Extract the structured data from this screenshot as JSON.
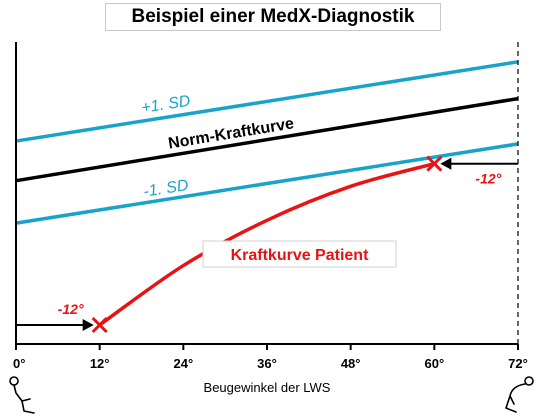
{
  "chart_data": {
    "type": "line",
    "title": "Beispiel einer MedX-Diagnostik",
    "xlabel": "Beugewinkel der LWS",
    "ylabel": "",
    "xlim": [
      0,
      72
    ],
    "ylim": [
      0,
      100
    ],
    "x_ticks": [
      "0°",
      "12°",
      "24°",
      "36°",
      "48°",
      "60°",
      "72°"
    ],
    "series": [
      {
        "name": "+1. SD",
        "x": [
          0,
          72
        ],
        "y": [
          65,
          93
        ],
        "color": "#1aa3c9"
      },
      {
        "name": "Norm-Kraftkurve",
        "x": [
          0,
          72
        ],
        "y": [
          51,
          80
        ],
        "color": "#000000"
      },
      {
        "name": "-1. SD",
        "x": [
          0,
          72
        ],
        "y": [
          36,
          64
        ],
        "color": "#1aa3c9"
      },
      {
        "name": "Kraftkurve Patient",
        "x": [
          12,
          24,
          36,
          48,
          60
        ],
        "y": [
          0,
          21,
          37,
          49,
          57
        ],
        "color": "#e81414"
      }
    ],
    "annotations": [
      {
        "text": "-12°",
        "at": "start"
      },
      {
        "text": "-12°",
        "at": "end"
      }
    ]
  }
}
